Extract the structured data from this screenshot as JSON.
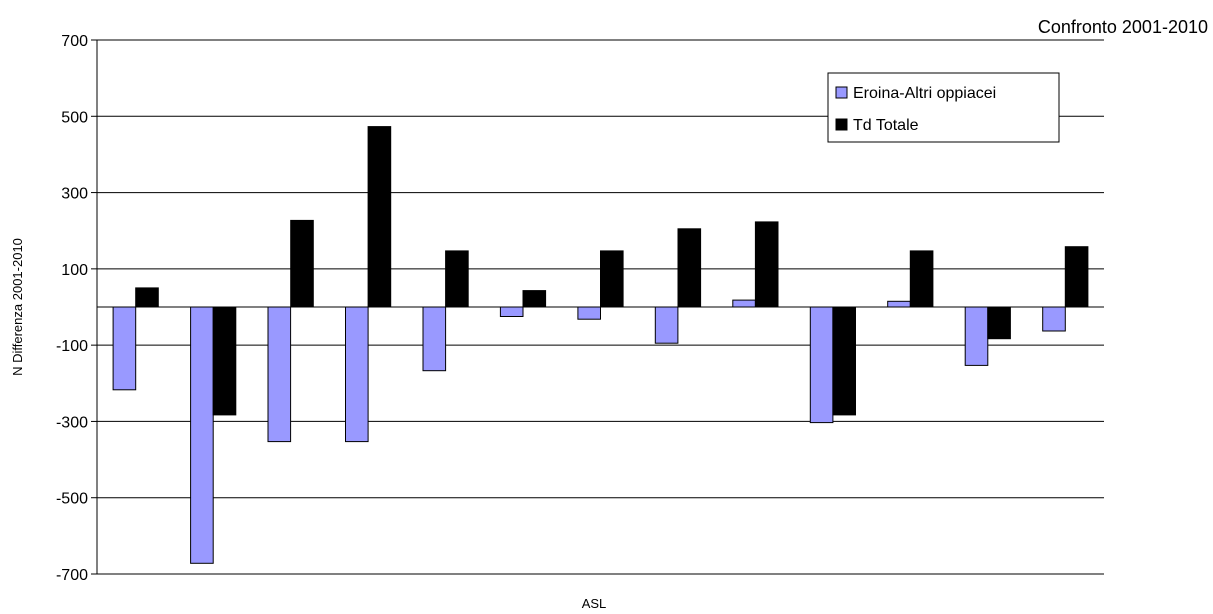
{
  "chart_data": {
    "type": "bar",
    "title": "Confronto 2001-2010",
    "xlabel": "ASL",
    "ylabel": "N Differenza 2001-2010",
    "ylim": [
      -700,
      700
    ],
    "yticks": [
      700,
      500,
      300,
      100,
      -100,
      -300,
      -500,
      -700
    ],
    "grid": true,
    "legend_position": "top-right",
    "categories": [
      "",
      "",
      "",
      "",
      "",
      "",
      "",
      "",
      "",
      "",
      "",
      "",
      ""
    ],
    "series": [
      {
        "name": "Eroina-Altri oppiacei",
        "color": "#9999ff",
        "values": [
          -217,
          -672,
          -353,
          -353,
          -167,
          -25,
          -32,
          -95,
          18,
          -303,
          15,
          -153,
          -63
        ]
      },
      {
        "name": "Td Totale",
        "color": "#000000",
        "values": [
          50,
          -283,
          227,
          473,
          147,
          43,
          147,
          205,
          223,
          -283,
          147,
          -83,
          158
        ]
      }
    ]
  }
}
